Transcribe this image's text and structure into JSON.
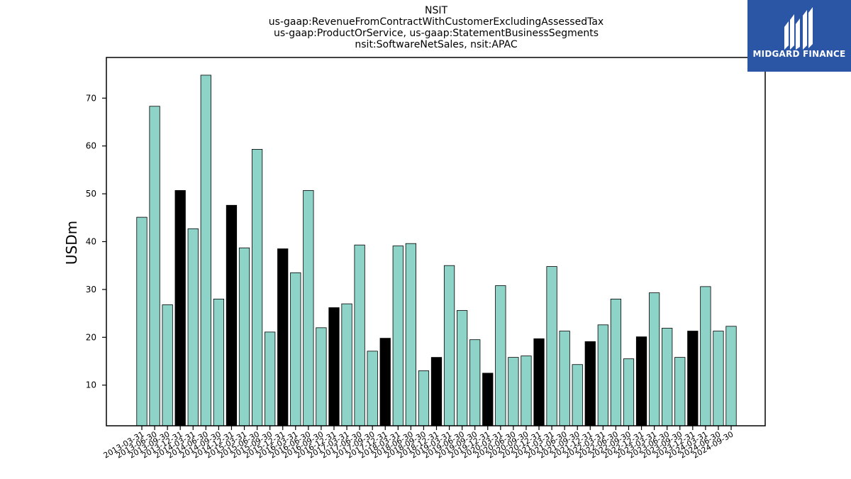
{
  "chart_data": {
    "type": "bar",
    "title_lines": [
      "NSIT",
      "us-gaap:RevenueFromContractWithCustomerExcludingAssessedTax",
      "us-gaap:ProductOrService, us-gaap:StatementBusinessSegments",
      "nsit:SoftwareNetSales, nsit:APAC"
    ],
    "ylabel": "USDm",
    "xlabel": "",
    "ylim": [
      1.5,
      78.5
    ],
    "yticks": [
      10,
      20,
      30,
      40,
      50,
      60,
      70
    ],
    "grid": false,
    "colors": {
      "bar": "#8dd3c7",
      "highlight": "#000000",
      "edge": "#000000"
    },
    "categories": [
      "2013-03-31",
      "2013-06-30",
      "2013-09-30",
      "2013-12-31",
      "2014-03-31",
      "2014-06-30",
      "2014-09-30",
      "2014-12-31",
      "2015-03-31",
      "2015-06-30",
      "2015-09-30",
      "2015-12-31",
      "2016-03-31",
      "2016-06-30",
      "2016-09-30",
      "2016-12-31",
      "2017-03-31",
      "2017-06-30",
      "2017-09-30",
      "2017-12-31",
      "2018-03-31",
      "2018-06-30",
      "2018-09-30",
      "2018-12-31",
      "2019-03-31",
      "2019-06-30",
      "2019-09-30",
      "2019-12-31",
      "2020-03-31",
      "2020-06-30",
      "2020-09-30",
      "2020-12-31",
      "2021-03-31",
      "2021-06-30",
      "2021-09-30",
      "2021-12-31",
      "2022-03-31",
      "2022-06-30",
      "2022-09-30",
      "2022-12-31",
      "2023-03-31",
      "2023-06-30",
      "2023-09-30",
      "2023-12-31",
      "2024-03-31",
      "2024-06-30",
      "2024-09-30"
    ],
    "values": [
      45.1,
      68.3,
      26.8,
      50.7,
      42.7,
      74.8,
      28.0,
      47.6,
      38.7,
      59.3,
      21.1,
      38.5,
      33.5,
      50.7,
      22.0,
      26.2,
      27.0,
      39.3,
      17.1,
      19.8,
      39.1,
      39.6,
      13.0,
      15.8,
      35.0,
      25.6,
      19.5,
      12.5,
      30.8,
      15.8,
      16.1,
      19.7,
      34.8,
      21.3,
      14.3,
      19.1,
      22.6,
      28.0,
      15.5,
      20.1,
      29.3,
      21.9,
      15.8,
      21.3,
      30.6,
      21.3,
      22.3
    ],
    "highlight": [
      false,
      false,
      false,
      true,
      false,
      false,
      false,
      true,
      false,
      false,
      false,
      true,
      false,
      false,
      false,
      true,
      false,
      false,
      false,
      true,
      false,
      false,
      false,
      true,
      false,
      false,
      false,
      true,
      false,
      false,
      false,
      true,
      false,
      false,
      false,
      true,
      false,
      false,
      false,
      true,
      false,
      false,
      false,
      true,
      false,
      false,
      false
    ]
  },
  "logo": {
    "text": "MIDGARD FINANCE",
    "background": "#2b55a5"
  }
}
